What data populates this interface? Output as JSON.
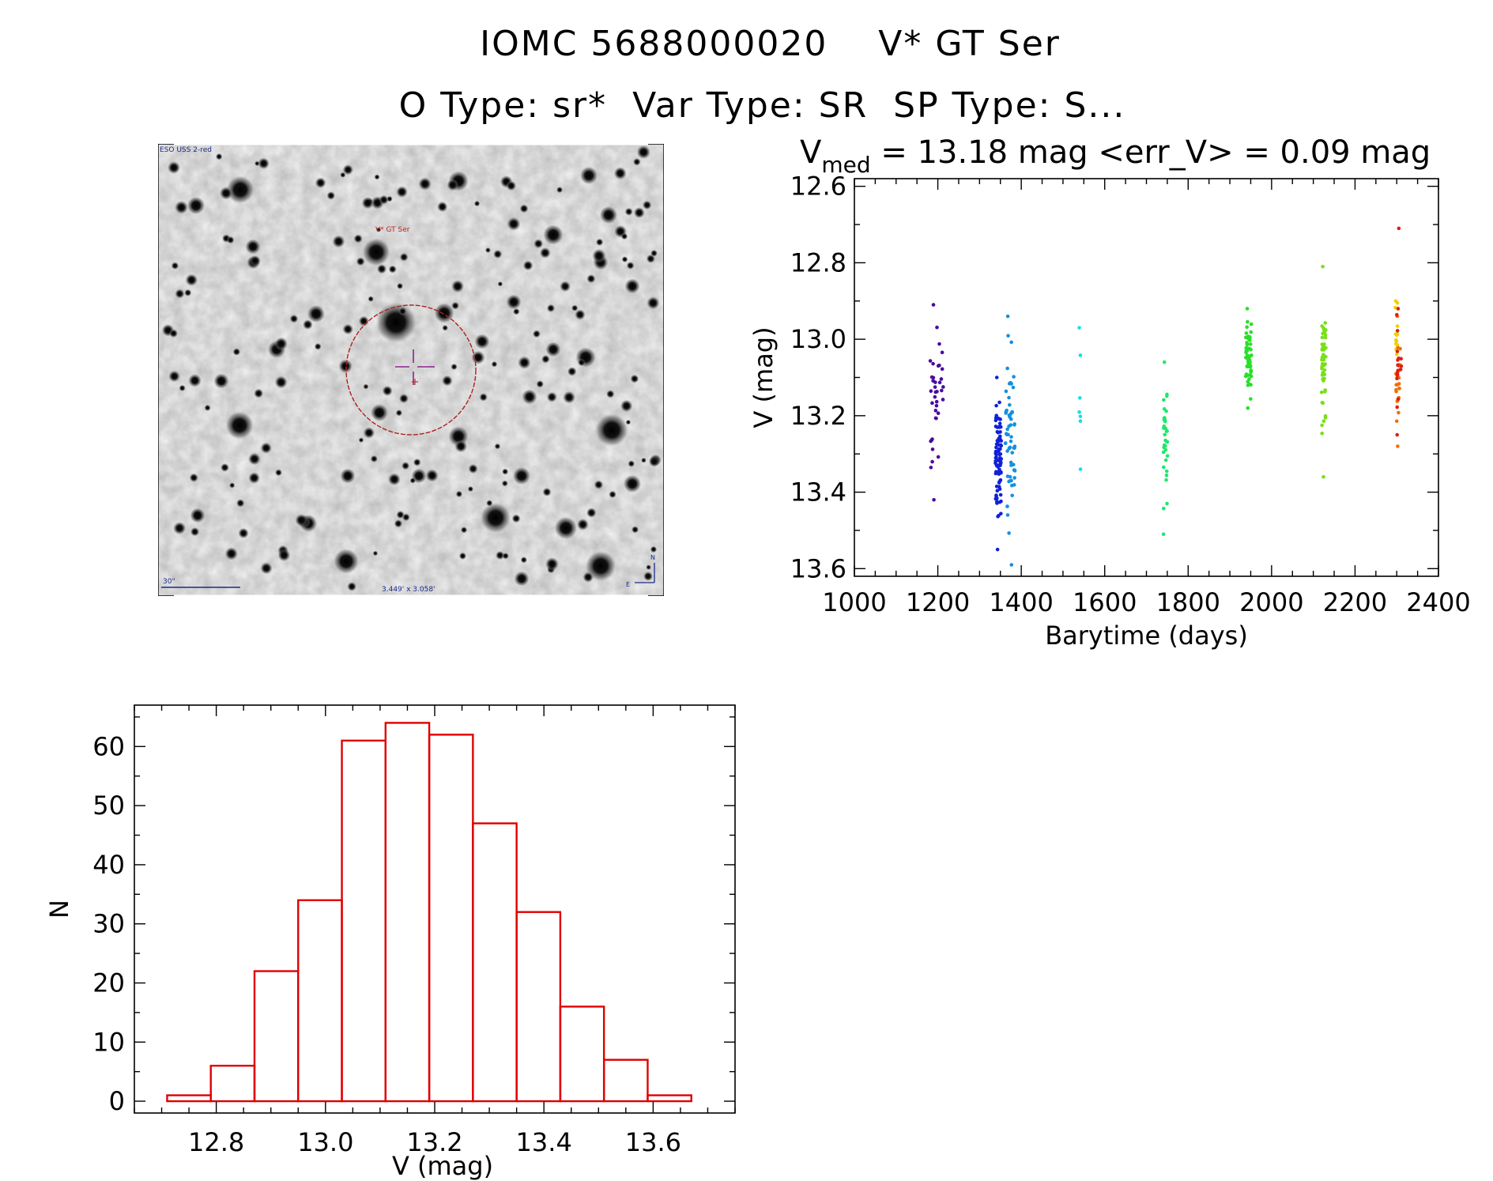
{
  "header": {
    "title_line1": "IOMC 5688000020    V* GT Ser",
    "title_line2": "O Type: sr*  Var Type: SR  SP Type: S..."
  },
  "finder": {
    "survey_label": "ESO USS 2-red",
    "target_label": "V* GT Ser",
    "scale_label": "30\"",
    "fov_label": "3.449' x 3.058'",
    "north_label": "N",
    "east_label": "E"
  },
  "lightcurve": {
    "stat_v": "V",
    "stat_sub": "med",
    "stat_rest": " = 13.18 mag <err_V> = 0.09 mag"
  },
  "chart_data": [
    {
      "type": "scatter",
      "title": "V_med = 13.18 mag <err_V> = 0.09 mag",
      "xlabel": "Barytime (days)",
      "ylabel": "V (mag)",
      "xlim": [
        1000,
        2400
      ],
      "ylim": [
        13.62,
        12.58
      ],
      "y_inverted": true,
      "xticks": [
        1000,
        1200,
        1400,
        1600,
        1800,
        2000,
        2200,
        2400
      ],
      "yticks": [
        "12.6",
        "12.8",
        "13.0",
        "13.2",
        "13.4",
        "13.6"
      ],
      "groups": [
        {
          "color": "#4a0aa0",
          "x_lo": 1182,
          "x_hi": 1213,
          "y_min": 12.91,
          "y_max": 13.42,
          "n": 38,
          "seed": 11
        },
        {
          "color": "#1020d8",
          "x_lo": 1338,
          "x_hi": 1352,
          "y_min": 13.1,
          "y_max": 13.55,
          "n": 90,
          "seed": 23
        },
        {
          "color": "#1490e0",
          "x_lo": 1362,
          "x_hi": 1385,
          "y_min": 12.94,
          "y_max": 13.59,
          "n": 60,
          "seed": 37
        },
        {
          "color": "#18dcec",
          "x_lo": 1538,
          "x_hi": 1542,
          "y_min": 12.97,
          "y_max": 13.34,
          "n": 7,
          "seed": 41
        },
        {
          "color": "#1ee86a",
          "x_lo": 1740,
          "x_hi": 1752,
          "y_min": 13.06,
          "y_max": 13.51,
          "n": 34,
          "seed": 53
        },
        {
          "color": "#28e028",
          "x_lo": 1938,
          "x_hi": 1952,
          "y_min": 12.92,
          "y_max": 13.18,
          "n": 60,
          "seed": 67
        },
        {
          "color": "#78e018",
          "x_lo": 2120,
          "x_hi": 2130,
          "y_min": 12.81,
          "y_max": 13.36,
          "n": 52,
          "seed": 79
        },
        {
          "color": "#f0d000",
          "x_lo": 2296,
          "x_hi": 2302,
          "y_min": 12.9,
          "y_max": 13.1,
          "n": 14,
          "seed": 83
        },
        {
          "color": "#f07000",
          "x_lo": 2298,
          "x_hi": 2310,
          "y_min": 12.94,
          "y_max": 13.28,
          "n": 22,
          "seed": 89
        },
        {
          "color": "#e02010",
          "x_lo": 2300,
          "x_hi": 2312,
          "y_min": 12.92,
          "y_max": 13.25,
          "n": 18,
          "seed": 97
        }
      ],
      "extra_points": [
        {
          "x": 2305,
          "y": 12.71,
          "color": "#e02010"
        }
      ]
    },
    {
      "type": "bar",
      "subtype": "histogram",
      "xlabel": "V (mag)",
      "ylabel": "N",
      "xlim": [
        12.65,
        13.75
      ],
      "ylim": [
        -2,
        67
      ],
      "xticks": [
        "12.8",
        "13.0",
        "13.2",
        "13.4",
        "13.6"
      ],
      "yticks": [
        "0",
        "10",
        "20",
        "30",
        "40",
        "50",
        "60"
      ],
      "bin_edges": [
        12.71,
        12.79,
        12.87,
        12.95,
        13.03,
        13.11,
        13.19,
        13.27,
        13.35,
        13.43,
        13.51,
        13.59,
        13.67
      ],
      "values": [
        1,
        6,
        22,
        34,
        61,
        64,
        62,
        47,
        32,
        16,
        7,
        1
      ],
      "bar_color": "#e00000"
    }
  ]
}
